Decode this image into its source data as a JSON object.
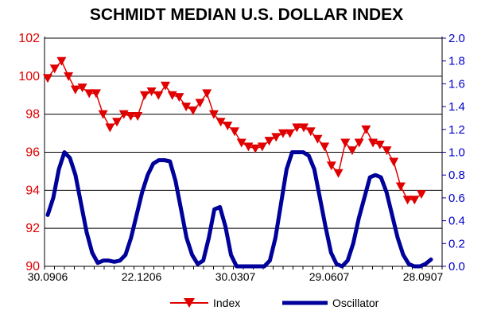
{
  "chart_data": {
    "type": "line",
    "title": "SCHMIDT MEDIAN U.S. DOLLAR INDEX",
    "x_tick_labels": [
      "30.0906",
      "22.1206",
      "30.0307",
      "29.0607",
      "28.0907"
    ],
    "left_axis": {
      "ylim": [
        90,
        102
      ],
      "ticks": [
        "102",
        "100",
        "98",
        "96",
        "94",
        "92",
        "90"
      ],
      "color": "#e00000"
    },
    "right_axis": {
      "ylim": [
        0.0,
        2.0
      ],
      "ticks": [
        "2.0",
        "1.8",
        "1.6",
        "1.4",
        "1.2",
        "1.0",
        "0.8",
        "0.6",
        "0.4",
        "0.2",
        "0.0"
      ],
      "color": "#0000c8"
    },
    "grid": "horizontal",
    "legend_position": "bottom",
    "series": [
      {
        "name": "Index",
        "axis": "left",
        "color": "#e00000",
        "marker": "triangle-down",
        "values": [
          99.9,
          100.4,
          100.8,
          100.0,
          99.3,
          99.4,
          99.1,
          99.1,
          98.0,
          97.3,
          97.6,
          98.0,
          97.9,
          97.9,
          99.0,
          99.2,
          99.0,
          99.5,
          99.0,
          98.9,
          98.4,
          98.2,
          98.6,
          99.1,
          98.0,
          97.6,
          97.4,
          97.1,
          96.5,
          96.3,
          96.2,
          96.3,
          96.6,
          96.8,
          97.0,
          97.0,
          97.3,
          97.3,
          97.1,
          96.7,
          96.3,
          95.3,
          94.9,
          96.5,
          96.1,
          96.5,
          97.2,
          96.5,
          96.4,
          96.1,
          95.5,
          94.2,
          93.5,
          93.5,
          93.8
        ]
      },
      {
        "name": "Oscillator",
        "axis": "right",
        "color": "#00009a",
        "values": [
          0.45,
          0.6,
          0.85,
          1.0,
          0.95,
          0.8,
          0.55,
          0.3,
          0.12,
          0.03,
          0.05,
          0.05,
          0.04,
          0.05,
          0.1,
          0.25,
          0.45,
          0.65,
          0.8,
          0.9,
          0.93,
          0.93,
          0.92,
          0.75,
          0.5,
          0.25,
          0.1,
          0.02,
          0.05,
          0.25,
          0.5,
          0.52,
          0.35,
          0.1,
          0.0,
          0.0,
          0.0,
          0.0,
          0.0,
          0.0,
          0.05,
          0.25,
          0.55,
          0.85,
          1.0,
          1.0,
          1.0,
          0.97,
          0.85,
          0.6,
          0.35,
          0.12,
          0.02,
          0.0,
          0.05,
          0.2,
          0.42,
          0.6,
          0.78,
          0.8,
          0.78,
          0.65,
          0.45,
          0.25,
          0.1,
          0.02,
          0.0,
          0.0,
          0.02,
          0.06
        ]
      }
    ]
  }
}
